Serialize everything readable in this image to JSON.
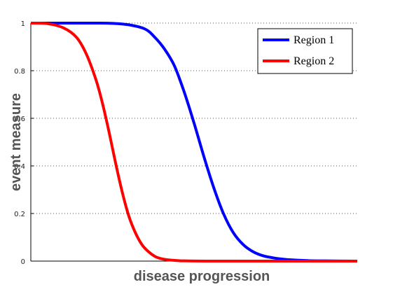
{
  "chart_data": {
    "type": "line",
    "title": "",
    "xlabel": "disease progression",
    "ylabel": "event measure",
    "ylim": [
      0,
      1
    ],
    "yticks": [
      "0",
      "0.2",
      "0.4",
      "0.6",
      "0.8",
      "1"
    ],
    "xticks": [],
    "grid": "horizontal dotted",
    "legend_position": "top-right",
    "series": [
      {
        "name": "Region 1",
        "color": "#0000ff",
        "x": [
          0,
          0.05,
          0.1,
          0.15,
          0.2,
          0.25,
          0.3,
          0.35,
          0.38,
          0.41,
          0.44,
          0.47,
          0.5,
          0.53,
          0.56,
          0.59,
          0.62,
          0.65,
          0.68,
          0.71,
          0.75,
          0.8,
          0.85,
          0.9,
          1.0
        ],
        "values": [
          1.0,
          1.0,
          1.0,
          1.0,
          1.0,
          0.999,
          0.993,
          0.975,
          0.94,
          0.89,
          0.82,
          0.71,
          0.58,
          0.44,
          0.31,
          0.2,
          0.12,
          0.07,
          0.04,
          0.023,
          0.012,
          0.005,
          0.002,
          0.001,
          0.0
        ]
      },
      {
        "name": "Region 2",
        "color": "#ff0000",
        "x": [
          0,
          0.05,
          0.1,
          0.14,
          0.17,
          0.2,
          0.22,
          0.24,
          0.26,
          0.28,
          0.3,
          0.32,
          0.34,
          0.36,
          0.38,
          0.4,
          0.43,
          0.47,
          0.55,
          0.7,
          1.0
        ],
        "values": [
          1.0,
          0.998,
          0.98,
          0.94,
          0.87,
          0.76,
          0.66,
          0.54,
          0.41,
          0.29,
          0.19,
          0.12,
          0.07,
          0.04,
          0.02,
          0.01,
          0.004,
          0.001,
          0.0,
          0.0,
          0.0
        ]
      }
    ]
  }
}
